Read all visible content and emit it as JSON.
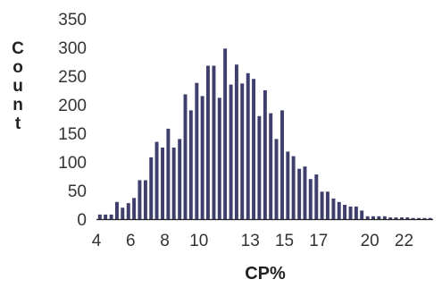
{
  "chart_data": {
    "type": "bar",
    "title": "",
    "xlabel": "CP%",
    "ylabel": "Count",
    "ylim": [
      0,
      350
    ],
    "xlim": [
      4,
      23.7
    ],
    "grid": false,
    "bar_color": "#3f3f6e",
    "y_ticks": [
      "0",
      "50",
      "100",
      "150",
      "200",
      "250",
      "300",
      "350"
    ],
    "x_ticks": [
      {
        "value": 4,
        "label": "4"
      },
      {
        "value": 6,
        "label": "6"
      },
      {
        "value": 8,
        "label": "8"
      },
      {
        "value": 10,
        "label": "10"
      },
      {
        "value": 13,
        "label": "13"
      },
      {
        "value": 15,
        "label": "15"
      },
      {
        "value": 17,
        "label": "17"
      },
      {
        "value": 20,
        "label": "20"
      },
      {
        "value": 22,
        "label": "22"
      }
    ],
    "bin_width": 0.333,
    "x": [
      4.2,
      4.53,
      4.87,
      5.2,
      5.53,
      5.87,
      6.2,
      6.53,
      6.87,
      7.2,
      7.53,
      7.87,
      8.2,
      8.53,
      8.87,
      9.2,
      9.53,
      9.87,
      10.2,
      10.53,
      10.87,
      11.2,
      11.53,
      11.87,
      12.2,
      12.53,
      12.87,
      13.2,
      13.53,
      13.87,
      14.2,
      14.53,
      14.87,
      15.2,
      15.53,
      15.87,
      16.2,
      16.53,
      16.87,
      17.2,
      17.53,
      17.87,
      18.2,
      18.53,
      18.87,
      19.2,
      19.53,
      19.87,
      20.2,
      20.53,
      20.87,
      21.2,
      21.53,
      21.87,
      22.2,
      22.53,
      22.87,
      23.2,
      23.53
    ],
    "values": [
      8,
      8,
      8,
      30,
      20,
      28,
      37,
      68,
      68,
      108,
      135,
      125,
      158,
      125,
      140,
      218,
      190,
      238,
      215,
      268,
      268,
      212,
      298,
      235,
      270,
      237,
      255,
      245,
      180,
      225,
      185,
      140,
      190,
      118,
      110,
      88,
      92,
      70,
      78,
      48,
      48,
      36,
      30,
      25,
      22,
      22,
      15,
      5,
      5,
      5,
      5,
      3,
      3,
      3,
      3,
      2,
      2,
      2,
      2
    ]
  }
}
